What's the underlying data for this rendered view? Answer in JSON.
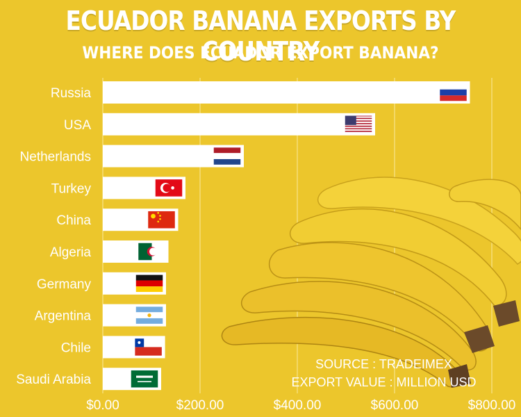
{
  "header": {
    "title": "ECUADOR BANANA EXPORTS BY COUNTRY",
    "subtitle": "WHERE DOES ECUADOR EXPORT BANANA?"
  },
  "footer": {
    "source": "SOURCE : TRADEIMEX",
    "unit": "EXPORT VALUE : MILLION USD"
  },
  "colors": {
    "background": "#ecc62c",
    "bar": "#ffffff",
    "text": "#ffffff",
    "grid": "#f5de7a"
  },
  "chart_data": {
    "type": "bar",
    "orientation": "horizontal",
    "title": "ECUADOR BANANA EXPORTS BY COUNTRY",
    "subtitle": "WHERE DOES ECUADOR EXPORT BANANA?",
    "categories": [
      "Russia",
      "USA",
      "Netherlands",
      "Turkey",
      "China",
      "Algeria",
      "Germany",
      "Argentina",
      "Chile",
      "Saudi Arabia"
    ],
    "values": [
      755,
      560,
      290,
      170,
      155,
      135,
      130,
      130,
      128,
      120
    ],
    "flags": [
      "russia-flag",
      "usa-flag",
      "netherlands-flag",
      "turkey-flag",
      "china-flag",
      "algeria-flag",
      "germany-flag",
      "argentina-flag",
      "chile-flag",
      "saudi-arabia-flag"
    ],
    "xlim": [
      0,
      800
    ],
    "xticks": [
      0,
      200,
      400,
      600,
      800
    ],
    "xtick_labels": [
      "$0.00",
      "$200.00",
      "$400.00",
      "$600.00",
      "$800.00"
    ],
    "grid": "vertical",
    "xlabel": "",
    "ylabel": ""
  }
}
